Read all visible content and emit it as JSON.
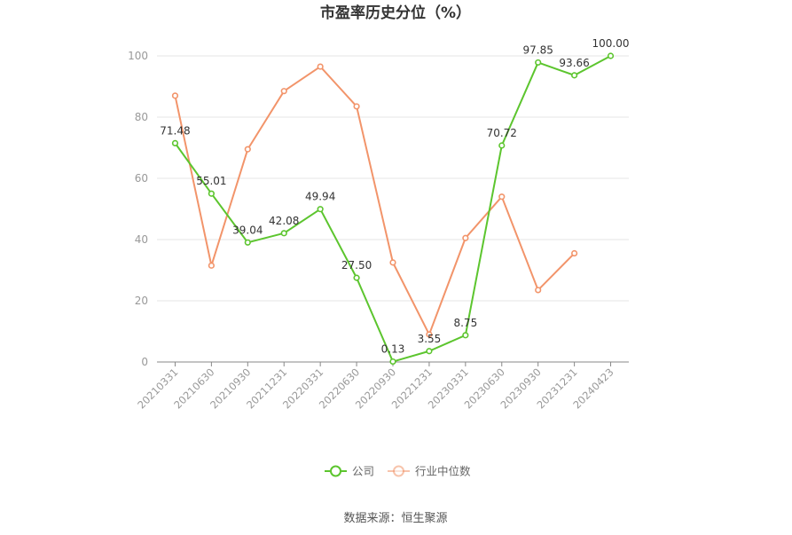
{
  "chart_data": {
    "type": "line",
    "title": "市盈率历史分位（%）",
    "x": [
      "20210331",
      "20210630",
      "20210930",
      "20211231",
      "20220331",
      "20220630",
      "20220930",
      "20221231",
      "20230331",
      "20230630",
      "20230930",
      "20231231",
      "20240423"
    ],
    "ylim": [
      0,
      100
    ],
    "yticks": [
      "0",
      "20",
      "40",
      "60",
      "80",
      "100"
    ],
    "grid": true,
    "legend_position": "bottom",
    "series": [
      {
        "name": "公司",
        "color": "#5cc52e",
        "values": [
          71.48,
          55.01,
          39.04,
          42.08,
          49.94,
          27.5,
          0.13,
          3.55,
          8.75,
          70.72,
          97.85,
          93.66,
          100.0
        ],
        "labels": [
          "71.48",
          "55.01",
          "39.04",
          "42.08",
          "49.94",
          "27.50",
          "0.13",
          "3.55",
          "8.75",
          "70.72",
          "97.85",
          "93.66",
          "100.00"
        ]
      },
      {
        "name": "行业中位数",
        "color": "#f2946a",
        "values": [
          87,
          31.5,
          69.5,
          88.5,
          96.5,
          83.5,
          32.5,
          9,
          40.5,
          54,
          23.5,
          35.5,
          null
        ]
      }
    ],
    "source": "数据来源：恒生聚源"
  }
}
